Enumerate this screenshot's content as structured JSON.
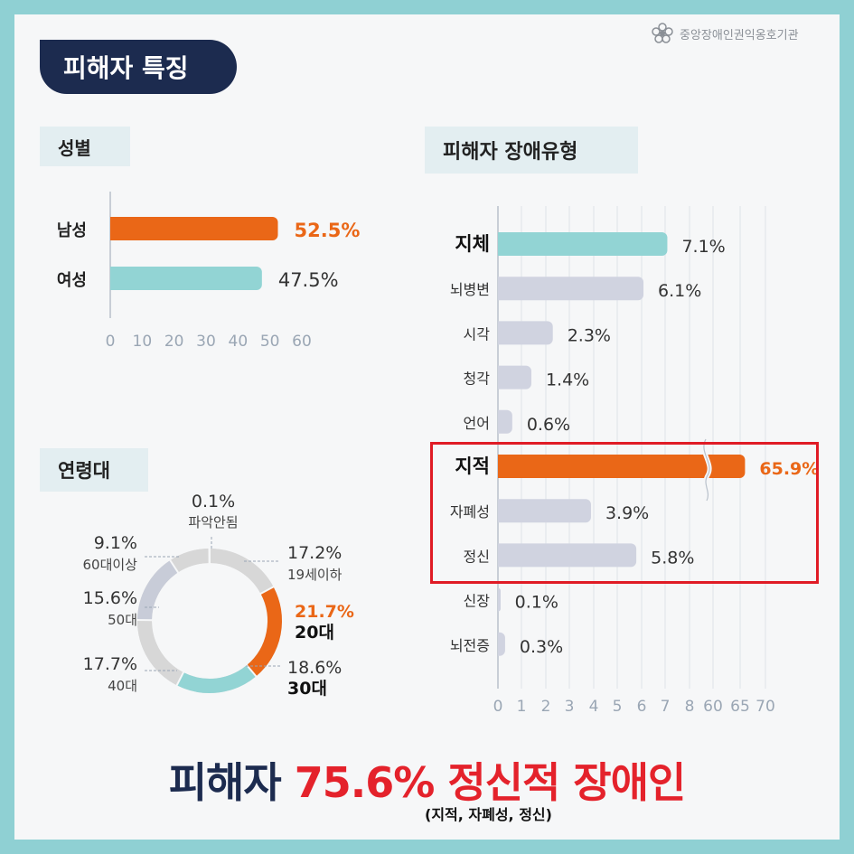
{
  "header": {
    "title": "피해자 특징",
    "org": "중앙장애인권익옹호기관"
  },
  "sections": {
    "gender": "성별",
    "age": "연령대",
    "disability": "피해자 장애유형"
  },
  "headline": {
    "part1": "피해자 ",
    "highlight": "75.6% 정신적 장애인",
    "sub": "(지적, 자폐성, 정신)"
  },
  "colors": {
    "orange": "#ea6717",
    "teal": "#92d4d4",
    "gray": "#d0d3e0",
    "navy": "#1c2b4f",
    "red": "#e4222b"
  },
  "chart_data": [
    {
      "type": "bar",
      "orientation": "horizontal",
      "categories": [
        "남성",
        "여성"
      ],
      "values": [
        52.5,
        47.5
      ],
      "labels": [
        "52.5%",
        "47.5%"
      ],
      "xticks": [
        "0",
        "10",
        "20",
        "30",
        "40",
        "50",
        "60"
      ],
      "xlim": [
        0,
        60
      ],
      "colors": [
        "#ea6717",
        "#92d4d4"
      ]
    },
    {
      "type": "pie",
      "style": "donut",
      "categories": [
        "19세이하",
        "20대",
        "30대",
        "40대",
        "50대",
        "60대이상",
        "파악안됨"
      ],
      "values": [
        17.2,
        21.7,
        18.6,
        17.7,
        15.6,
        9.1,
        0.1
      ],
      "labels": [
        "17.2%",
        "21.7%",
        "18.6%",
        "17.7%",
        "15.6%",
        "9.1%",
        "0.1%"
      ],
      "colors": [
        "#d7d7d7",
        "#ea6717",
        "#92d4d4",
        "#d7d7d7",
        "#c8ccd8",
        "#d7d7d7",
        "#c8ccd8"
      ]
    },
    {
      "type": "bar",
      "orientation": "horizontal",
      "axis_break": "between 8 and 60",
      "categories": [
        "지체",
        "뇌병변",
        "시각",
        "청각",
        "언어",
        "지적",
        "자폐성",
        "정신",
        "신장",
        "뇌전증"
      ],
      "values": [
        7.1,
        6.1,
        2.3,
        1.4,
        0.6,
        65.9,
        3.9,
        5.8,
        0.1,
        0.3
      ],
      "labels": [
        "7.1%",
        "6.1%",
        "2.3%",
        "1.4%",
        "0.6%",
        "65.9%",
        "3.9%",
        "5.8%",
        "0.1%",
        "0.3%"
      ],
      "bold_categories": [
        "지체",
        "지적"
      ],
      "highlight_group": [
        "지적",
        "자폐성",
        "정신"
      ],
      "xticks": [
        "0",
        "1",
        "2",
        "3",
        "4",
        "5",
        "6",
        "7",
        "8",
        "60",
        "65",
        "70"
      ],
      "colors": [
        "#92d4d4",
        "#d0d3e0",
        "#d0d3e0",
        "#d0d3e0",
        "#d0d3e0",
        "#ea6717",
        "#d0d3e0",
        "#d0d3e0",
        "#d0d3e0",
        "#d0d3e0"
      ]
    }
  ]
}
